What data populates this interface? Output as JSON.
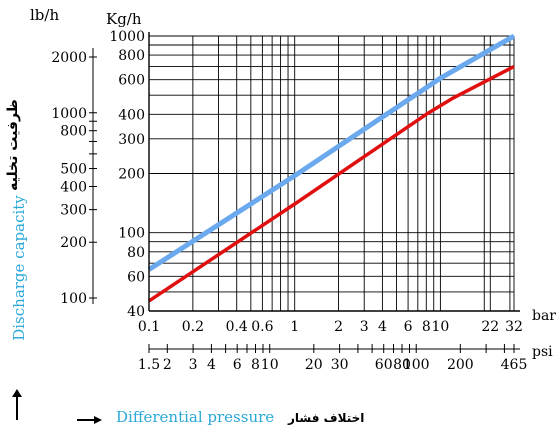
{
  "chart_data": {
    "type": "line",
    "xlabel": "Differential pressure",
    "xlabel_fa": "اختلاف فشار",
    "ylabel": "Discharge capacity",
    "ylabel_fa": "ظرفیت تخلیه",
    "x_unit_bar": "bar",
    "x_unit_psi": "psi",
    "y_unit_kgh": "Kg/h",
    "y_unit_lbh": "lb/h",
    "xscale": "log",
    "yscale": "log",
    "xlim": [
      0.1,
      32
    ],
    "ylim": [
      40,
      1000
    ],
    "grid": true,
    "bar_ticks": [
      {
        "label": "0.1",
        "value": 0.1
      },
      {
        "label": "0.2",
        "value": 0.2
      },
      {
        "label": "0.4",
        "value": 0.4
      },
      {
        "label": "0.6",
        "value": 0.6
      },
      {
        "label": "1",
        "value": 1
      },
      {
        "label": "2",
        "value": 2
      },
      {
        "label": "3",
        "value": 3
      },
      {
        "label": "4",
        "value": 4
      },
      {
        "label": "6",
        "value": 6
      },
      {
        "label": "8",
        "value": 8
      },
      {
        "label": "10",
        "value": 10
      },
      {
        "label": "22",
        "value": 22
      },
      {
        "label": "32",
        "value": 32
      }
    ],
    "psi_ticks": [
      {
        "label": "1.5",
        "value": 1.5
      },
      {
        "label": "2",
        "value": 2
      },
      {
        "label": "3",
        "value": 3
      },
      {
        "label": "4",
        "value": 4
      },
      {
        "label": "6",
        "value": 6
      },
      {
        "label": "8",
        "value": 8
      },
      {
        "label": "10",
        "value": 10
      },
      {
        "label": "20",
        "value": 20
      },
      {
        "label": "30",
        "value": 30
      },
      {
        "label": "60",
        "value": 60
      },
      {
        "label": "80",
        "value": 80
      },
      {
        "label": "100",
        "value": 100
      },
      {
        "label": "200",
        "value": 200
      },
      {
        "label": "465",
        "value": 465
      }
    ],
    "kgh_ticks": [
      {
        "label": "40",
        "value": 40
      },
      {
        "label": "60",
        "value": 60
      },
      {
        "label": "80",
        "value": 80
      },
      {
        "label": "100",
        "value": 100
      },
      {
        "label": "200",
        "value": 200
      },
      {
        "label": "300",
        "value": 300
      },
      {
        "label": "400",
        "value": 400
      },
      {
        "label": "600",
        "value": 600
      },
      {
        "label": "800",
        "value": 800
      },
      {
        "label": "1000",
        "value": 1000
      }
    ],
    "lbh_ticks": [
      {
        "label": "100",
        "value": 100
      },
      {
        "label": "200",
        "value": 200
      },
      {
        "label": "300",
        "value": 300
      },
      {
        "label": "400",
        "value": 400
      },
      {
        "label": "500",
        "value": 500
      },
      {
        "label": "800",
        "value": 800
      },
      {
        "label": "1000",
        "value": 1000
      },
      {
        "label": "2000",
        "value": 2000
      }
    ],
    "series": [
      {
        "color": "#6aa9ee",
        "x": [
          0.1,
          1,
          10,
          32
        ],
        "y": [
          65,
          195,
          610,
          1000
        ]
      },
      {
        "color": "#e11010",
        "x": [
          0.1,
          1,
          8,
          12,
          32
        ],
        "y": [
          45,
          140,
          400,
          480,
          700
        ]
      }
    ],
    "colors": {
      "ylabel": "#2aa8d8",
      "xlabel": "#2aa8d8",
      "text": "#000000",
      "grid": "#000000"
    }
  }
}
